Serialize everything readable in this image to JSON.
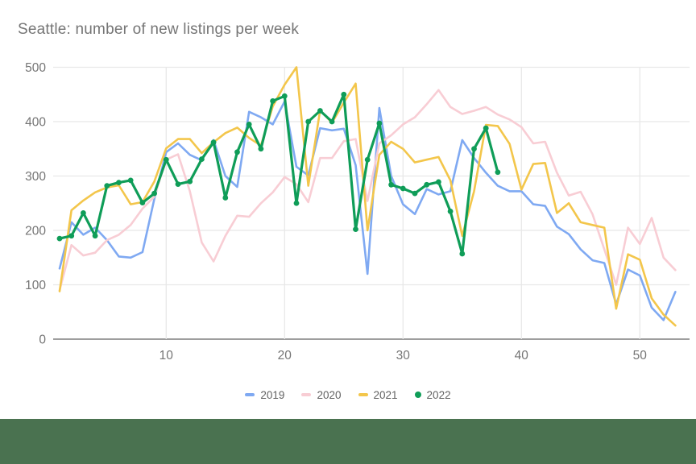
{
  "title": "Seattle: number of new listings per week",
  "footer_bar_color": "#4A7250",
  "styles": {
    "title_color": "#757575",
    "axis_label_color": "#757575",
    "legend_text_color": "#616161",
    "gridline_color": "#E8E8E8",
    "axis_line_color": "#9E9E9E",
    "background": "#FFFFFF"
  },
  "chart_data": {
    "type": "line",
    "title": "Seattle: number of new listings per week",
    "xlabel": "",
    "ylabel": "",
    "xlim": [
      1,
      53
    ],
    "ylim": [
      0,
      500
    ],
    "x_ticks": [
      10,
      20,
      30,
      40,
      50
    ],
    "y_ticks": [
      0,
      100,
      200,
      300,
      400,
      500
    ],
    "grid": true,
    "legend_position": "bottom",
    "x_unit": "week of year",
    "series": [
      {
        "name": "2019",
        "color": "#7FA9F2",
        "marker": "none",
        "values": [
          130,
          215,
          192,
          205,
          182,
          152,
          150,
          160,
          258,
          344,
          360,
          339,
          329,
          366,
          300,
          280,
          418,
          408,
          395,
          437,
          317,
          301,
          388,
          384,
          387,
          320,
          120,
          425,
          300,
          248,
          230,
          276,
          266,
          272,
          366,
          333,
          306,
          282,
          272,
          272,
          248,
          245,
          207,
          193,
          165,
          145,
          140,
          64,
          128,
          117,
          58,
          35,
          87
        ]
      },
      {
        "name": "2020",
        "color": "#F8CDD4",
        "marker": "none",
        "values": [
          90,
          173,
          154,
          159,
          182,
          192,
          210,
          240,
          262,
          330,
          340,
          272,
          178,
          143,
          190,
          227,
          225,
          250,
          270,
          298,
          285,
          252,
          333,
          333,
          364,
          368,
          254,
          360,
          375,
          395,
          408,
          432,
          458,
          427,
          414,
          420,
          427,
          413,
          404,
          390,
          360,
          363,
          306,
          264,
          271,
          230,
          165,
          100,
          205,
          175,
          223,
          150,
          127
        ]
      },
      {
        "name": "2021",
        "color": "#F3C64B",
        "marker": "none",
        "values": [
          88,
          237,
          255,
          270,
          279,
          283,
          248,
          252,
          290,
          351,
          368,
          368,
          342,
          362,
          379,
          389,
          370,
          356,
          428,
          468,
          500,
          282,
          421,
          398,
          435,
          470,
          200,
          339,
          363,
          350,
          325,
          330,
          335,
          292,
          190,
          272,
          394,
          392,
          359,
          275,
          322,
          324,
          232,
          250,
          215,
          210,
          205,
          56,
          156,
          146,
          75,
          45,
          25
        ]
      },
      {
        "name": "2022",
        "color": "#0F9D58",
        "marker": "circle",
        "values": [
          185,
          190,
          232,
          190,
          282,
          288,
          292,
          251,
          268,
          330,
          285,
          290,
          331,
          362,
          260,
          344,
          395,
          350,
          438,
          447,
          250,
          400,
          420,
          400,
          450,
          202,
          330,
          397,
          284,
          277,
          268,
          284,
          289,
          235,
          157,
          350,
          388,
          307
        ]
      }
    ]
  }
}
